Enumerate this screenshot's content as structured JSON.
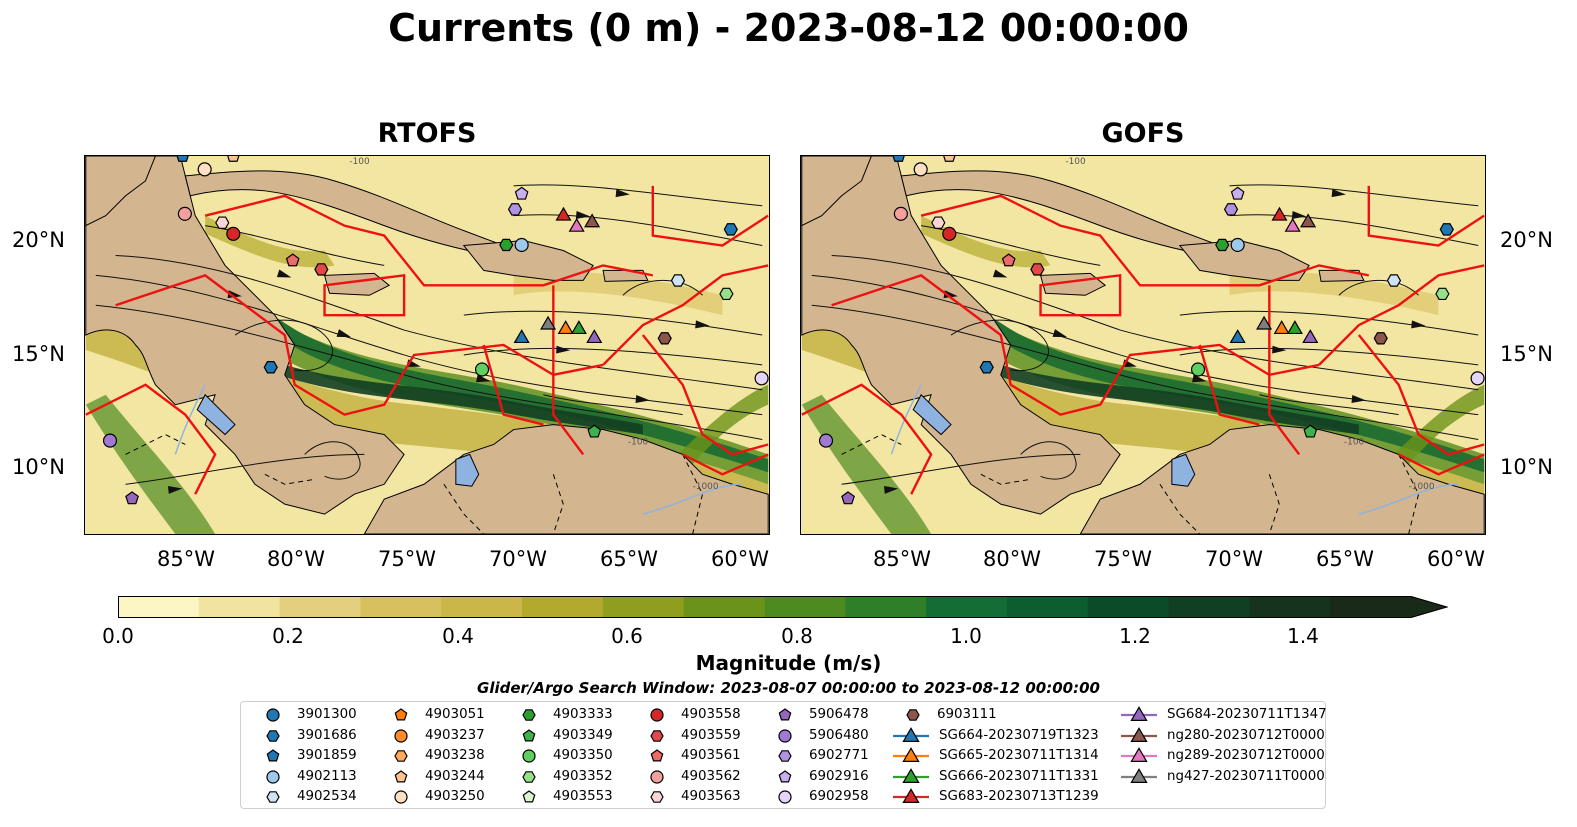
{
  "title": "Currents (0 m) - 2023-08-12 00:00:00",
  "panels": [
    {
      "title": "RTOFS"
    },
    {
      "title": "GOFS"
    }
  ],
  "axes": {
    "lat_labels": [
      "20°N",
      "15°N",
      "10°N"
    ],
    "lon_labels": [
      "85°W",
      "80°W",
      "75°W",
      "70°W",
      "65°W",
      "60°W"
    ],
    "lon_range": [
      -89,
      -58
    ],
    "lat_range": [
      7,
      24
    ]
  },
  "colorbar": {
    "label": "Magnitude (m/s)",
    "ticks": [
      "0.0",
      "0.2",
      "0.4",
      "0.6",
      "0.8",
      "1.0",
      "1.2",
      "1.4"
    ],
    "range": [
      0,
      1.5
    ],
    "colors": [
      "#fbf6c3",
      "#f1e3a0",
      "#e3cf7d",
      "#d8c05e",
      "#cbb648",
      "#b3aa2d",
      "#8f9e1e",
      "#6b931a",
      "#4d8a20",
      "#2f7f29",
      "#146d34",
      "#0c5d2f",
      "#0c4b29",
      "#113f23",
      "#16331e",
      "#1a2a19"
    ]
  },
  "search_window": "Glider/Argo Search Window: 2023-08-07 00:00:00 to 2023-08-12 00:00:00",
  "legend": [
    {
      "label": "3901300",
      "shape": "circle",
      "color": "#1f77b4"
    },
    {
      "label": "3901686",
      "shape": "hexagon",
      "color": "#1f77b4"
    },
    {
      "label": "3901859",
      "shape": "pentagon",
      "color": "#1f77b4"
    },
    {
      "label": "4902113",
      "shape": "circle",
      "color": "#9ec9ea"
    },
    {
      "label": "4902534",
      "shape": "hexagon",
      "color": "#cfe3f5"
    },
    {
      "label": "4903051",
      "shape": "pentagon",
      "color": "#ff7f0e"
    },
    {
      "label": "4903237",
      "shape": "circle",
      "color": "#ff8c2a"
    },
    {
      "label": "4903238",
      "shape": "hexagon",
      "color": "#ffaa5a"
    },
    {
      "label": "4903244",
      "shape": "pentagon",
      "color": "#ffc48c"
    },
    {
      "label": "4903250",
      "shape": "circle",
      "color": "#ffe0c2"
    },
    {
      "label": "4903333",
      "shape": "hexagon",
      "color": "#2ca02c"
    },
    {
      "label": "4903349",
      "shape": "pentagon",
      "color": "#3cb44b"
    },
    {
      "label": "4903350",
      "shape": "circle",
      "color": "#5fcf5f"
    },
    {
      "label": "4903352",
      "shape": "hexagon",
      "color": "#98df8a"
    },
    {
      "label": "4903553",
      "shape": "pentagon",
      "color": "#d9f5cf"
    },
    {
      "label": "4903558",
      "shape": "circle",
      "color": "#d62728"
    },
    {
      "label": "4903559",
      "shape": "hexagon",
      "color": "#e0484a"
    },
    {
      "label": "4903561",
      "shape": "pentagon",
      "color": "#ec6a6a"
    },
    {
      "label": "4903562",
      "shape": "circle",
      "color": "#f4a09f"
    },
    {
      "label": "4903563",
      "shape": "hexagon",
      "color": "#fcd5d4"
    },
    {
      "label": "5906478",
      "shape": "pentagon",
      "color": "#9467bd"
    },
    {
      "label": "5906480",
      "shape": "circle",
      "color": "#a07ad0"
    },
    {
      "label": "6902771",
      "shape": "hexagon",
      "color": "#b192e0"
    },
    {
      "label": "6902916",
      "shape": "pentagon",
      "color": "#c8b0ee"
    },
    {
      "label": "6902958",
      "shape": "circle",
      "color": "#e5d5fa"
    },
    {
      "label": "6903111",
      "shape": "hexagon",
      "color": "#8c564b"
    },
    {
      "label": "SG664-20230719T1323",
      "shape": "triangle",
      "color": "#1f77b4"
    },
    {
      "label": "SG665-20230711T1314",
      "shape": "triangle",
      "color": "#ff7f0e"
    },
    {
      "label": "SG666-20230711T1331",
      "shape": "triangle",
      "color": "#2ca02c"
    },
    {
      "label": "SG683-20230713T1239",
      "shape": "triangle",
      "color": "#d62728"
    },
    {
      "label": "SG684-20230711T1347",
      "shape": "triangle",
      "color": "#9467bd"
    },
    {
      "label": "ng280-20230712T0000",
      "shape": "triangle",
      "color": "#8c564b"
    },
    {
      "label": "ng289-20230712T0000",
      "shape": "triangle",
      "color": "#e377c2"
    },
    {
      "label": "ng427-20230711T0000",
      "shape": "triangle",
      "color": "#7f7f7f"
    }
  ],
  "markers": [
    {
      "id": "3901859",
      "lon": -84.6,
      "lat": 24.0
    },
    {
      "id": "4903244",
      "lon": -82.3,
      "lat": 24.0
    },
    {
      "id": "4903250",
      "lon": -83.6,
      "lat": 23.4
    },
    {
      "id": "4903562",
      "lon": -84.5,
      "lat": 21.4
    },
    {
      "id": "4903563",
      "lon": -82.8,
      "lat": 21.0
    },
    {
      "id": "4903558",
      "lon": -82.3,
      "lat": 20.5
    },
    {
      "id": "4903561",
      "lon": -79.6,
      "lat": 19.3
    },
    {
      "id": "4903559",
      "lon": -78.3,
      "lat": 18.9
    },
    {
      "id": "4903333",
      "lon": -69.9,
      "lat": 20.0
    },
    {
      "id": "4902113",
      "lon": -69.2,
      "lat": 20.0
    },
    {
      "id": "6902916",
      "lon": -69.2,
      "lat": 22.3
    },
    {
      "id": "6902771",
      "lon": -69.5,
      "lat": 21.6
    },
    {
      "id": "3901686",
      "lon": -59.7,
      "lat": 20.7
    },
    {
      "id": "4902534",
      "lon": -62.1,
      "lat": 18.4
    },
    {
      "id": "4903352",
      "lon": -59.9,
      "lat": 17.8
    },
    {
      "id": "3901686",
      "lon": -80.6,
      "lat": 14.5
    },
    {
      "id": "4903350",
      "lon": -71.0,
      "lat": 14.4
    },
    {
      "id": "6902958",
      "lon": -58.3,
      "lat": 14.0
    },
    {
      "id": "5906480",
      "lon": -87.9,
      "lat": 11.2
    },
    {
      "id": "4903349",
      "lon": -65.9,
      "lat": 11.6
    },
    {
      "id": "5906478",
      "lon": -86.9,
      "lat": 8.6
    },
    {
      "id": "6903111",
      "lon": -62.7,
      "lat": 15.8
    },
    {
      "id": "SG664-20230719T1323",
      "lon": -69.2,
      "lat": 15.8
    },
    {
      "id": "ng427-20230711T0000",
      "lon": -68.0,
      "lat": 16.4
    },
    {
      "id": "SG665-20230711T1314",
      "lon": -67.2,
      "lat": 16.2
    },
    {
      "id": "SG666-20230711T1331",
      "lon": -66.6,
      "lat": 16.2
    },
    {
      "id": "SG684-20230711T1347",
      "lon": -65.9,
      "lat": 15.8
    },
    {
      "id": "SG683-20230713T1239",
      "lon": -67.3,
      "lat": 21.3
    },
    {
      "id": "ng289-20230712T0000",
      "lon": -66.7,
      "lat": 20.8
    },
    {
      "id": "ng280-20230712T0000",
      "lon": -66.0,
      "lat": 21.0
    }
  ]
}
